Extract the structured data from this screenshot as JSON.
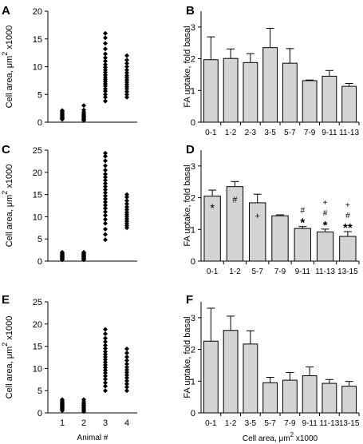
{
  "chart_data": [
    {
      "panel": "A",
      "type": "scatter",
      "ylabel_main": "Cell area, μm",
      "ylabel_sup": "2",
      "ylabel_tail": " x1000",
      "xlabel": "",
      "ylim": [
        0,
        20
      ],
      "yticks": [
        "0",
        "5",
        "10",
        "15",
        "20"
      ],
      "xticks": [],
      "series": [
        {
          "x": 1,
          "values": [
            0.5,
            0.7,
            0.8,
            1.0,
            1.1,
            1.3,
            1.5,
            1.7,
            1.9,
            2.1
          ]
        },
        {
          "x": 2,
          "values": [
            0.3,
            0.5,
            0.7,
            0.9,
            1.1,
            1.3,
            1.5,
            1.8,
            2.2,
            3.0
          ]
        },
        {
          "x": 3,
          "values": [
            3.8,
            4.5,
            5.0,
            5.6,
            6.0,
            6.5,
            6.9,
            7.3,
            7.7,
            8.1,
            8.5,
            9.0,
            9.4,
            9.9,
            10.4,
            11.0,
            11.6,
            12.3,
            13.2,
            14.2,
            15.2,
            16.0
          ]
        },
        {
          "x": 4,
          "values": [
            4.5,
            5.0,
            5.5,
            6.0,
            6.4,
            6.8,
            7.2,
            7.6,
            8.0,
            8.4,
            8.9,
            9.4,
            10.0,
            10.6,
            11.2,
            12.0
          ]
        }
      ]
    },
    {
      "panel": "B",
      "type": "bar",
      "ylabel": "FA uptake, fold basal",
      "ylim": [
        0,
        3.5
      ],
      "yticks": [
        "0",
        "1",
        "2",
        "3"
      ],
      "categories": [
        "0-1",
        "1-2",
        "2-3",
        "3-5",
        "5-7",
        "7-9",
        "9-11",
        "11-13"
      ],
      "values": [
        1.97,
        2.01,
        1.88,
        2.35,
        1.86,
        1.31,
        1.45,
        1.13
      ],
      "errors": [
        0.72,
        0.3,
        0.28,
        0.61,
        0.46,
        0.02,
        0.18,
        0.09
      ]
    },
    {
      "panel": "C",
      "type": "scatter",
      "ylabel_main": "Cell area, μm",
      "ylabel_sup": "2",
      "ylabel_tail": " x1000",
      "xlabel": "",
      "ylim": [
        0,
        25
      ],
      "yticks": [
        "0",
        "5",
        "10",
        "15",
        "20",
        "25"
      ],
      "xticks": [],
      "series": [
        {
          "x": 1,
          "values": [
            0.3,
            0.5,
            0.7,
            0.9,
            1.0,
            1.2,
            1.4,
            1.6,
            1.8,
            2.0
          ]
        },
        {
          "x": 2,
          "values": [
            0.3,
            0.5,
            0.7,
            0.9,
            1.0,
            1.2,
            1.4,
            1.6,
            1.8,
            2.0
          ]
        },
        {
          "x": 3,
          "values": [
            4.8,
            6.0,
            7.2,
            8.5,
            9.4,
            10.3,
            11.1,
            11.9,
            12.6,
            13.3,
            14.0,
            14.7,
            15.4,
            16.1,
            16.8,
            17.5,
            18.2,
            18.9,
            19.6,
            20.5,
            21.5,
            22.6,
            23.6,
            24.3
          ]
        },
        {
          "x": 4,
          "values": [
            7.5,
            8.0,
            8.5,
            9.0,
            9.5,
            10.0,
            10.5,
            11.0,
            11.6,
            12.2,
            12.9,
            13.6,
            14.4,
            15.0
          ]
        }
      ]
    },
    {
      "panel": "D",
      "type": "bar",
      "ylabel": "FA uptake, fold basal",
      "ylim": [
        0,
        3.5
      ],
      "yticks": [
        "0",
        "1",
        "2",
        "3"
      ],
      "categories": [
        "0-1",
        "1-2",
        "5-7",
        "7-9",
        "9-11",
        "11-13",
        "13-15"
      ],
      "values": [
        2.05,
        2.35,
        1.84,
        1.43,
        1.03,
        0.92,
        0.78
      ],
      "errors": [
        0.19,
        0.16,
        0.27,
        0.03,
        0.06,
        0.09,
        0.15
      ],
      "annotations": [
        {
          "bar": 0,
          "inside": [
            "*"
          ]
        },
        {
          "bar": 1,
          "inside": [
            "#"
          ]
        },
        {
          "bar": 2,
          "inside": [
            "+"
          ]
        },
        {
          "bar": 4,
          "above": [
            "#",
            "*"
          ]
        },
        {
          "bar": 5,
          "above": [
            "+",
            "#",
            "*"
          ]
        },
        {
          "bar": 6,
          "above": [
            "+",
            "#",
            "**"
          ]
        }
      ]
    },
    {
      "panel": "E",
      "type": "scatter",
      "ylabel_main": "Cell area, μm",
      "ylabel_sup": "2",
      "ylabel_tail": " x1000",
      "xlabel": "Animal #",
      "ylim": [
        0,
        25
      ],
      "yticks": [
        "0",
        "5",
        "10",
        "15",
        "20",
        "25"
      ],
      "xticks": [
        "1",
        "2",
        "3",
        "4"
      ],
      "series": [
        {
          "x": 1,
          "values": [
            0.5,
            0.8,
            1.0,
            1.2,
            1.4,
            1.6,
            1.8,
            2.0,
            2.2,
            2.4,
            2.7,
            3.0
          ]
        },
        {
          "x": 2,
          "values": [
            0.3,
            0.6,
            0.9,
            1.2,
            1.5,
            1.8,
            2.1,
            2.5,
            3.0
          ]
        },
        {
          "x": 3,
          "values": [
            5.0,
            6.0,
            6.8,
            7.6,
            8.3,
            9.0,
            9.6,
            10.2,
            10.8,
            11.4,
            12.0,
            12.6,
            13.2,
            13.8,
            14.5,
            15.2,
            16.0,
            16.8,
            17.8,
            18.8
          ]
        },
        {
          "x": 4,
          "values": [
            5.0,
            5.8,
            6.5,
            7.2,
            7.9,
            8.5,
            9.1,
            9.7,
            10.3,
            11.0,
            11.8,
            12.6,
            13.5,
            14.4
          ]
        }
      ]
    },
    {
      "panel": "F",
      "type": "bar",
      "ylabel": "FA uptake, fold basal",
      "ylim": [
        0,
        3.5
      ],
      "yticks": [
        "0",
        "1",
        "2",
        "3"
      ],
      "xlabel_main": "Cell area, μm",
      "xlabel_sup": "2",
      "xlabel_tail": " x1000",
      "categories": [
        "0-1",
        "1-2",
        "3-5",
        "5-7",
        "7-9",
        "9-11",
        "11-13",
        "13-15"
      ],
      "values": [
        2.26,
        2.6,
        2.17,
        0.95,
        1.03,
        1.17,
        0.93,
        0.84
      ],
      "errors": [
        1.04,
        0.45,
        0.42,
        0.17,
        0.24,
        0.28,
        0.12,
        0.15
      ]
    }
  ]
}
